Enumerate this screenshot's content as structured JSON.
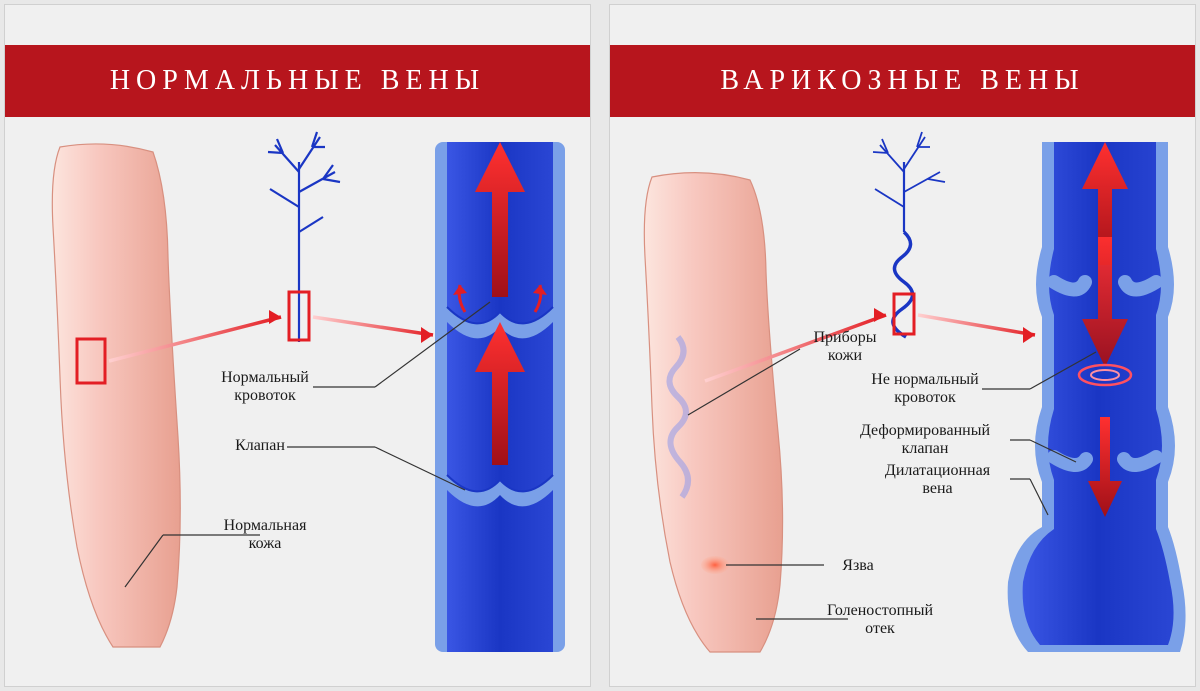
{
  "left_panel": {
    "title": "НОРМАЛЬНЫЕ ВЕНЫ",
    "labels": {
      "blood_flow": "Нормальный\nкровоток",
      "valve": "Клапан",
      "skin": "Нормальная\nкожа"
    }
  },
  "right_panel": {
    "title": "ВАРИКОЗНЫЕ ВЕНЫ",
    "labels": {
      "skin_changes": "Приборы\nкожи",
      "blood_flow": "Не нормальный\nкровоток",
      "deformed_valve": "Деформированный\nклапан",
      "dilated_vein": "Дилатационная\nвена",
      "ulcer": "Язва",
      "edema": "Голеностопный\nотек"
    }
  },
  "colors": {
    "title_bg": "#b7151d",
    "vein_blue": "#1a36c4",
    "vein_blue_light": "#3a56e4",
    "vein_outline": "#7aa0e8",
    "arrow_red": "#e31e24",
    "arrow_red_dark": "#a01018",
    "skin_pink": "#f8c8c0",
    "skin_pink_dark": "#e8a090",
    "callout_red": "#e31e24",
    "text_color": "#1a1a1a",
    "line_color": "#333333",
    "panel_bg": "#f0f0f0"
  }
}
